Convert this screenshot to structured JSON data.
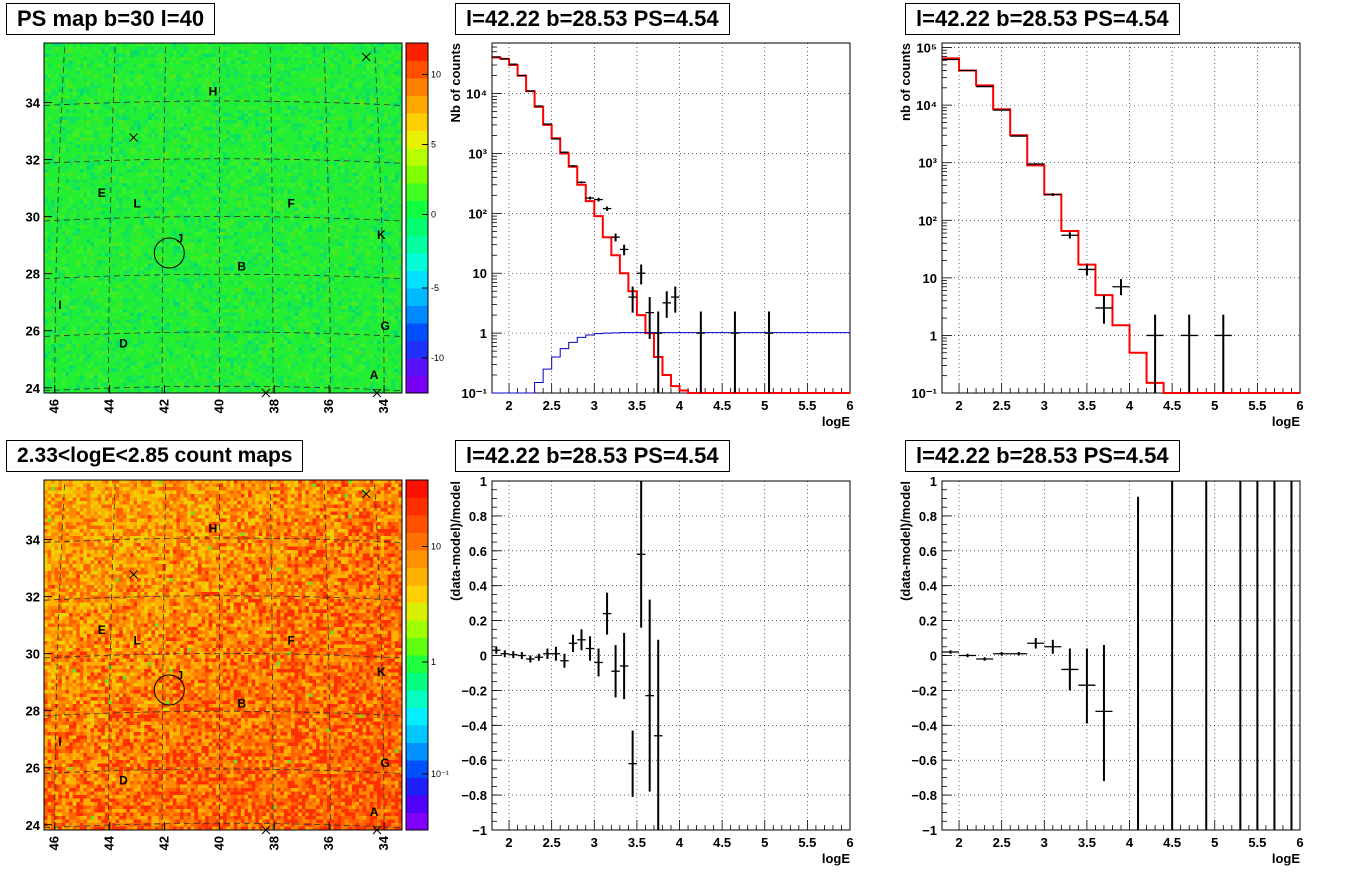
{
  "titles": {
    "ps_map": "PS map b=30 l=40",
    "count_map": "2.33<logE<2.85 count maps",
    "spectrum_all": "l=42.22 b=28.53 PS=4.54",
    "spectrum_reb": "l=42.22 b=28.53 PS=4.54",
    "residual_all": "l=42.22 b=28.53 PS=4.54",
    "residual_reb": "l=42.22 b=28.53 PS=4.54"
  },
  "maps": {
    "x_ticks": [
      "46",
      "44",
      "42",
      "40",
      "38",
      "36",
      "34"
    ],
    "y_ticks": [
      "24",
      "26",
      "28",
      "30",
      "32",
      "34"
    ],
    "source_labels": [
      "H",
      "E",
      "L",
      "F",
      "J",
      "K",
      "B",
      "I",
      "G",
      "D",
      "A"
    ],
    "ps_colorbar_ticks": [
      "10",
      "5",
      "0",
      "-5",
      "-10"
    ],
    "count_colorbar_ticks": [
      "10",
      "1",
      "10⁻¹"
    ]
  },
  "chart_data": [
    {
      "type": "heatmap",
      "id": "ps_map",
      "title": "PS map b=30 l=40",
      "xlabel": "",
      "ylabel": "",
      "xlim": [
        46.5,
        33.5
      ],
      "ylim": [
        23.9,
        35.7
      ],
      "z_range": [
        -12,
        12
      ],
      "source": {
        "l": 42.22,
        "b": 28.53
      },
      "colorbar_ticks": [
        10,
        5,
        0,
        -5,
        -10
      ]
    },
    {
      "type": "heatmap",
      "id": "count_map",
      "title": "2.33<logE<2.85 count maps",
      "xlabel": "",
      "ylabel": "",
      "xlim": [
        46.5,
        33.5
      ],
      "ylim": [
        23.9,
        35.7
      ],
      "z_scale": "log",
      "colorbar_ticks": [
        10,
        1,
        0.1
      ]
    },
    {
      "type": "line",
      "id": "spectrum_all",
      "title": "l=42.22 b=28.53 PS=4.54",
      "xlabel": "logE",
      "ylabel": "Nb of counts",
      "xlim": [
        1.8,
        6.0
      ],
      "ylim": [
        0.1,
        70000
      ],
      "yscale": "log",
      "x_ticks": [
        "2",
        "2.5",
        "3",
        "3.5",
        "4",
        "4.5",
        "5",
        "5.5",
        "6"
      ],
      "y_ticks": [
        "10⁻¹",
        "1",
        "10",
        "10²",
        "10³",
        "10⁴"
      ],
      "series": [
        {
          "style": "step",
          "color": "#ff0000",
          "edges": [
            1.8,
            1.9,
            2.0,
            2.1,
            2.2,
            2.3,
            2.4,
            2.5,
            2.6,
            2.7,
            2.8,
            2.9,
            3.0,
            3.1,
            3.2,
            3.3,
            3.4,
            3.5,
            3.6,
            3.7,
            3.8,
            3.9,
            4.0,
            4.1,
            4.2,
            4.3,
            6.0
          ],
          "values": [
            40000,
            38000,
            30000,
            20000,
            11000,
            6000,
            3000,
            1800,
            1000,
            600,
            300,
            160,
            90,
            40,
            20,
            10,
            5,
            2,
            1,
            0.4,
            0.2,
            0.13,
            0.11,
            0.1,
            0.09,
            0.09
          ]
        },
        {
          "style": "step",
          "color": "#0000cc",
          "edges": [
            1.8,
            2.2,
            2.3,
            2.4,
            2.5,
            2.6,
            2.7,
            2.8,
            2.9,
            3.0,
            3.1,
            3.2,
            3.3,
            3.4,
            3.5,
            6.0
          ],
          "values": [
            0.08,
            0.1,
            0.15,
            0.25,
            0.4,
            0.55,
            0.7,
            0.85,
            0.93,
            0.98,
            1.0,
            1.01,
            1.02,
            1.02,
            1.02
          ]
        },
        {
          "style": "errorbar",
          "color": "#000000",
          "x": [
            1.85,
            1.95,
            2.05,
            2.15,
            2.25,
            2.35,
            2.45,
            2.55,
            2.65,
            2.75,
            2.85,
            2.95,
            3.05,
            3.15,
            3.25,
            3.35,
            3.45,
            3.55,
            3.65,
            3.75,
            3.85,
            3.95,
            4.25,
            4.65,
            5.05
          ],
          "y": [
            41000,
            38000,
            31000,
            20000,
            11000,
            6200,
            3100,
            1750,
            1050,
            620,
            330,
            180,
            170,
            120,
            40,
            25,
            4,
            10,
            2.2,
            1,
            3.2,
            4,
            1,
            1,
            1
          ],
          "xerr": [
            0.05,
            0.05,
            0.05,
            0.05,
            0.05,
            0.05,
            0.05,
            0.05,
            0.05,
            0.05,
            0.05,
            0.05,
            0.05,
            0.05,
            0.05,
            0.05,
            0.05,
            0.05,
            0.05,
            0.05,
            0.05,
            0.05,
            0.05,
            0.05,
            0.05
          ],
          "ylow": [
            40500,
            37500,
            30500,
            19800,
            10900,
            6100,
            3040,
            1710,
            1020,
            600,
            318,
            170,
            158,
            110,
            34,
            20,
            2.2,
            6.5,
            0.8,
            0.1,
            1.8,
            2.2,
            0.1,
            0.1,
            0.1
          ],
          "yhigh": [
            41500,
            38500,
            31500,
            20200,
            11100,
            6300,
            3160,
            1790,
            1080,
            640,
            342,
            190,
            182,
            130,
            46,
            30,
            6,
            14,
            4,
            2.3,
            5,
            6,
            2.3,
            2.3,
            2.3
          ]
        }
      ]
    },
    {
      "type": "line",
      "id": "spectrum_reb",
      "title": "l=42.22 b=28.53 PS=4.54",
      "xlabel": "logE",
      "ylabel": "nb of counts",
      "xlim": [
        1.8,
        6.0
      ],
      "ylim": [
        0.1,
        120000
      ],
      "yscale": "log",
      "x_ticks": [
        "2",
        "2.5",
        "3",
        "3.5",
        "4",
        "4.5",
        "5",
        "5.5",
        "6"
      ],
      "y_ticks": [
        "10⁻¹",
        "1",
        "10",
        "10²",
        "10³",
        "10⁴",
        "10⁵"
      ],
      "series": [
        {
          "style": "step",
          "color": "#ff0000",
          "edges": [
            1.8,
            2.0,
            2.2,
            2.4,
            2.6,
            2.8,
            3.0,
            3.2,
            3.4,
            3.6,
            3.8,
            4.0,
            4.2,
            4.4,
            6.0
          ],
          "values": [
            65000,
            40000,
            22000,
            8500,
            3000,
            900,
            280,
            65,
            17,
            5,
            1.5,
            0.5,
            0.15,
            0.08
          ]
        },
        {
          "style": "errorbar",
          "color": "#000000",
          "x": [
            1.9,
            2.1,
            2.3,
            2.5,
            2.7,
            2.9,
            3.1,
            3.3,
            3.5,
            3.7,
            3.9,
            4.3,
            4.7,
            5.1
          ],
          "y": [
            62000,
            40000,
            21000,
            8200,
            2900,
            950,
            280,
            55,
            14,
            3,
            7,
            1,
            1,
            1
          ],
          "xerr": [
            0.1,
            0.1,
            0.1,
            0.1,
            0.1,
            0.1,
            0.1,
            0.1,
            0.1,
            0.1,
            0.1,
            0.1,
            0.1,
            0.1
          ],
          "ylow": [
            61000,
            39500,
            20800,
            8100,
            2850,
            920,
            265,
            48,
            11,
            1.6,
            5,
            0.1,
            0.1,
            0.1
          ],
          "yhigh": [
            63000,
            40500,
            21200,
            8300,
            2950,
            980,
            295,
            62,
            17,
            5,
            9.5,
            2.3,
            2.3,
            2.3
          ]
        }
      ]
    },
    {
      "type": "scatter",
      "id": "residual_all",
      "title": "l=42.22 b=28.53 PS=4.54",
      "xlabel": "logE",
      "ylabel": "(data-model)/model",
      "xlim": [
        1.8,
        6.0
      ],
      "ylim": [
        -1,
        1
      ],
      "x_ticks": [
        "2",
        "2.5",
        "3",
        "3.5",
        "4",
        "4.5",
        "5",
        "5.5",
        "6"
      ],
      "y_ticks": [
        "−1",
        "−0.8",
        "−0.6",
        "−0.4",
        "−0.2",
        "0",
        "0.2",
        "0.4",
        "0.6",
        "0.8",
        "1"
      ],
      "series": [
        {
          "style": "errorbar",
          "color": "#000000",
          "x": [
            1.85,
            1.95,
            2.05,
            2.15,
            2.25,
            2.35,
            2.45,
            2.55,
            2.65,
            2.75,
            2.85,
            2.95,
            3.05,
            3.15,
            3.25,
            3.35,
            3.45,
            3.55,
            3.65,
            3.75
          ],
          "y": [
            0.03,
            0.01,
            0.005,
            0.0,
            -0.02,
            -0.01,
            0.01,
            0.01,
            -0.03,
            0.07,
            0.09,
            0.04,
            -0.04,
            0.24,
            -0.09,
            -0.06,
            -0.62,
            0.58,
            -0.23,
            -0.46
          ],
          "xerr": [
            0.05,
            0.05,
            0.05,
            0.05,
            0.05,
            0.05,
            0.05,
            0.05,
            0.05,
            0.05,
            0.05,
            0.05,
            0.05,
            0.05,
            0.05,
            0.05,
            0.05,
            0.05,
            0.05,
            0.05
          ],
          "yerr": [
            0.02,
            0.02,
            0.02,
            0.02,
            0.02,
            0.02,
            0.03,
            0.04,
            0.04,
            0.05,
            0.06,
            0.07,
            0.08,
            0.12,
            0.15,
            0.19,
            0.19,
            0.42,
            0.55,
            0.55
          ]
        }
      ]
    },
    {
      "type": "scatter",
      "id": "residual_reb",
      "title": "l=42.22 b=28.53 PS=4.54",
      "xlabel": "logE",
      "ylabel": "(data-model)/model",
      "xlim": [
        1.8,
        6.0
      ],
      "ylim": [
        -1,
        1
      ],
      "x_ticks": [
        "2",
        "2.5",
        "3",
        "3.5",
        "4",
        "4.5",
        "5",
        "5.5",
        "6"
      ],
      "y_ticks": [
        "−1",
        "−0.8",
        "−0.6",
        "−0.4",
        "−0.2",
        "0",
        "0.2",
        "0.4",
        "0.6",
        "0.8",
        "1"
      ],
      "series": [
        {
          "style": "errorbar",
          "color": "#000000",
          "x": [
            1.9,
            2.1,
            2.3,
            2.5,
            2.7,
            2.9,
            3.1,
            3.3,
            3.5,
            3.7,
            4.1,
            4.5,
            4.9,
            5.3,
            5.5,
            5.7,
            5.9
          ],
          "y": [
            0.02,
            0.0,
            -0.02,
            0.01,
            0.01,
            0.07,
            0.05,
            -0.08,
            -0.17,
            -0.32,
            -1,
            -1,
            -1,
            -1,
            -1,
            -1,
            -1
          ],
          "xerr": [
            0.1,
            0.1,
            0.1,
            0.1,
            0.1,
            0.1,
            0.1,
            0.1,
            0.1,
            0.1,
            0,
            0,
            0,
            0,
            0,
            0,
            0
          ],
          "ylow": [
            0.01,
            -0.01,
            -0.03,
            0.0,
            0.0,
            0.04,
            0.01,
            -0.2,
            -0.39,
            -0.72,
            -1,
            -1,
            -1,
            -1,
            -1,
            -1,
            -1
          ],
          "yhigh": [
            0.03,
            0.01,
            -0.01,
            0.02,
            0.02,
            0.1,
            0.09,
            0.04,
            0.04,
            0.06,
            0.91,
            1.2,
            1.2,
            1.2,
            1.2,
            1.2,
            1.2
          ]
        }
      ]
    }
  ]
}
